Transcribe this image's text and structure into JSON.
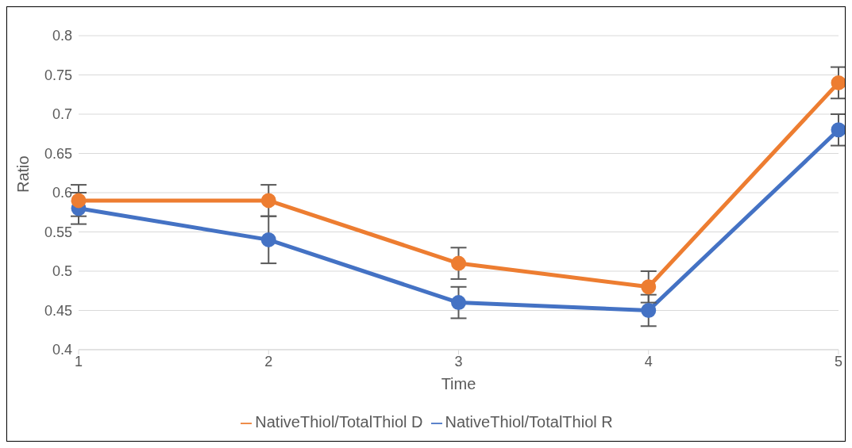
{
  "chart_data": {
    "type": "line",
    "xlabel": "Time",
    "ylabel": "Ratio",
    "categories": [
      "1",
      "2",
      "3",
      "4",
      "5"
    ],
    "series": [
      {
        "name": "NativeThiol/TotalThiol R",
        "color": "#4472c4",
        "values": [
          0.58,
          0.54,
          0.46,
          0.45,
          0.68
        ],
        "errors": [
          0.02,
          0.03,
          0.02,
          0.02,
          0.02
        ]
      },
      {
        "name": "NativeThiol/TotalThiol D",
        "color": "#ed7d31",
        "values": [
          0.59,
          0.59,
          0.51,
          0.48,
          0.74
        ],
        "errors": [
          0.02,
          0.02,
          0.02,
          0.02,
          0.02
        ]
      }
    ],
    "ylim": [
      0.4,
      0.8
    ],
    "yticks": [
      0.4,
      0.45,
      0.5,
      0.55,
      0.6,
      0.65,
      0.7,
      0.75,
      0.8
    ],
    "grid": "y",
    "legend": "bottom",
    "marker": "circle",
    "line_style": "solid"
  }
}
